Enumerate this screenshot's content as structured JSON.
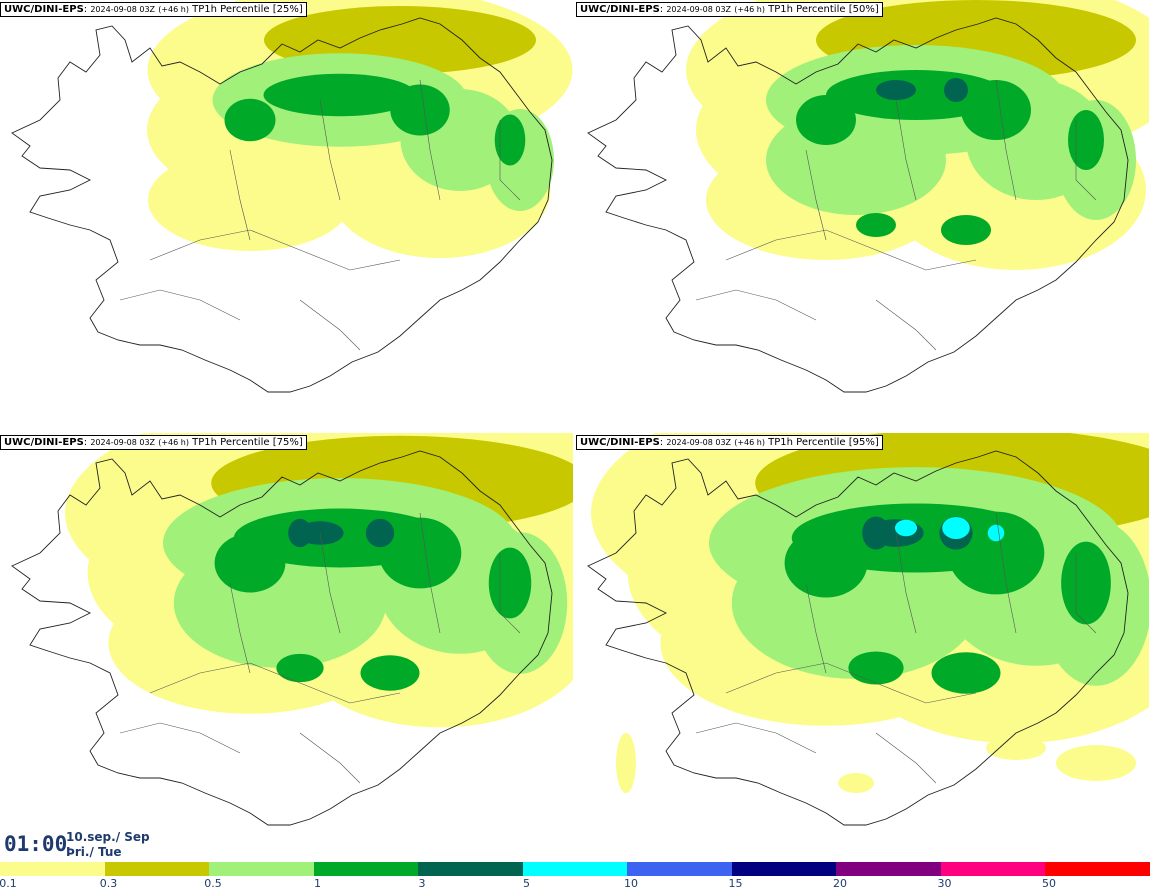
{
  "panels": [
    {
      "model": "UWC/DINI-EPS",
      "run": "2024-09-08 03Z",
      "lead": "(+46 h)",
      "field": "TP1h Percentile [25%]",
      "level": 0
    },
    {
      "model": "UWC/DINI-EPS",
      "run": "2024-09-08 03Z",
      "lead": "(+46 h)",
      "field": "TP1h Percentile [50%]",
      "level": 1
    },
    {
      "model": "UWC/DINI-EPS",
      "run": "2024-09-08 03Z",
      "lead": "(+46 h)",
      "field": "TP1h Percentile [75%]",
      "level": 2
    },
    {
      "model": "UWC/DINI-EPS",
      "run": "2024-09-08 03Z",
      "lead": "(+46 h)",
      "field": "TP1h Percentile [95%]",
      "level": 3
    }
  ],
  "valid_time": {
    "time": "01:00",
    "date": "10.sep./ Sep",
    "weekday": "Þri./ Tue"
  },
  "colorbar": {
    "ticks": [
      "0.1",
      "0.3",
      "0.5",
      "1",
      "3",
      "5",
      "10",
      "15",
      "20",
      "30",
      "50"
    ],
    "colors": [
      "#fcfc8c",
      "#c8c800",
      "#a0f07a",
      "#00aa28",
      "#006450",
      "#00ffff",
      "#3c64f0",
      "#000080",
      "#800080",
      "#ff0080",
      "#ff0000"
    ]
  }
}
